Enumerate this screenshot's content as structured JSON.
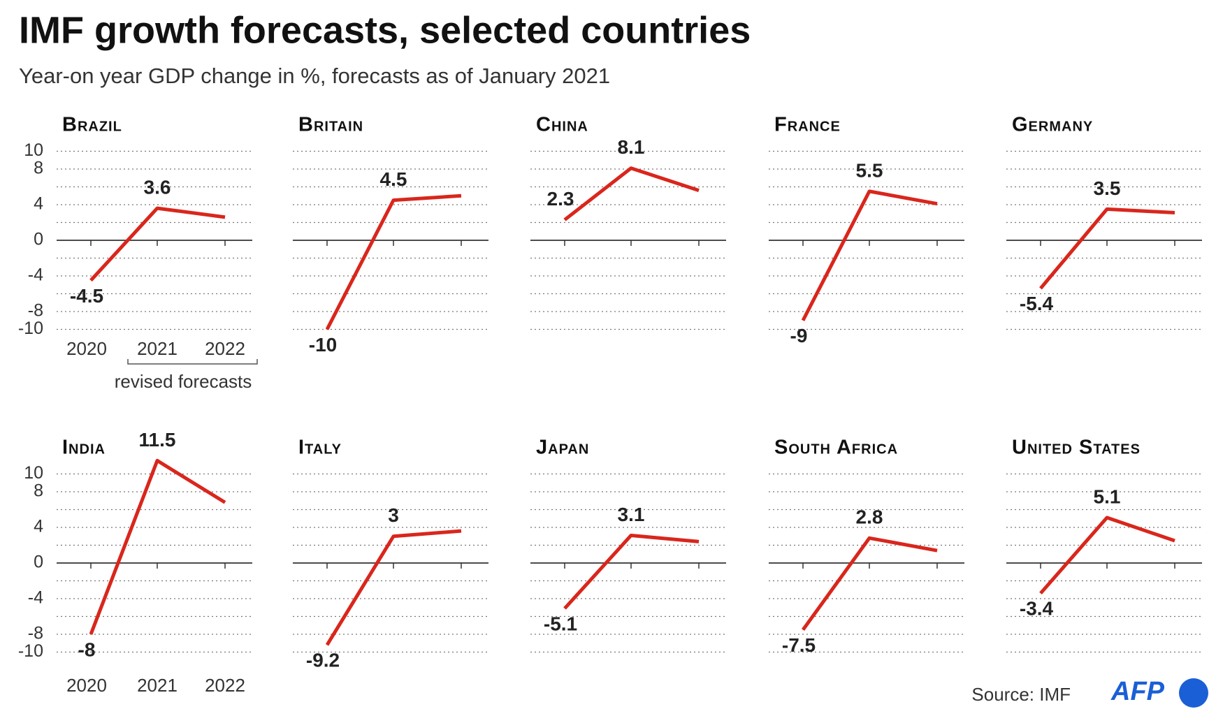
{
  "chart_data": {
    "type": "line",
    "title": "IMF growth forecasts, selected countries",
    "subtitle": "Year-on year GDP change in %, forecasts as of January 2021",
    "categories": [
      "2020",
      "2021",
      "2022"
    ],
    "annotation": "revised forecasts",
    "source": "Source: IMF",
    "logo": "AFP",
    "color": "#d9261c",
    "ylim": [
      -10,
      11.5
    ],
    "yticks": [
      10,
      8,
      4,
      0,
      -4,
      -8,
      -10
    ],
    "minor_yticks": [
      6,
      2,
      -2,
      -6
    ],
    "grid": true,
    "labeled_indices": [
      0,
      1
    ],
    "panels": [
      {
        "name": "Brazil",
        "values": [
          -4.5,
          3.6,
          2.6
        ]
      },
      {
        "name": "Britain",
        "values": [
          -10,
          4.5,
          5.0
        ]
      },
      {
        "name": "China",
        "values": [
          2.3,
          8.1,
          5.6
        ]
      },
      {
        "name": "France",
        "values": [
          -9,
          5.5,
          4.1
        ]
      },
      {
        "name": "Germany",
        "values": [
          -5.4,
          3.5,
          3.1
        ]
      },
      {
        "name": "India",
        "values": [
          -8,
          11.5,
          6.8
        ]
      },
      {
        "name": "Italy",
        "values": [
          -9.2,
          3,
          3.6
        ]
      },
      {
        "name": "Japan",
        "values": [
          -5.1,
          3.1,
          2.4
        ]
      },
      {
        "name": "South Africa",
        "values": [
          -7.5,
          2.8,
          1.4
        ]
      },
      {
        "name": "United States",
        "values": [
          -3.4,
          5.1,
          2.5
        ]
      }
    ]
  }
}
